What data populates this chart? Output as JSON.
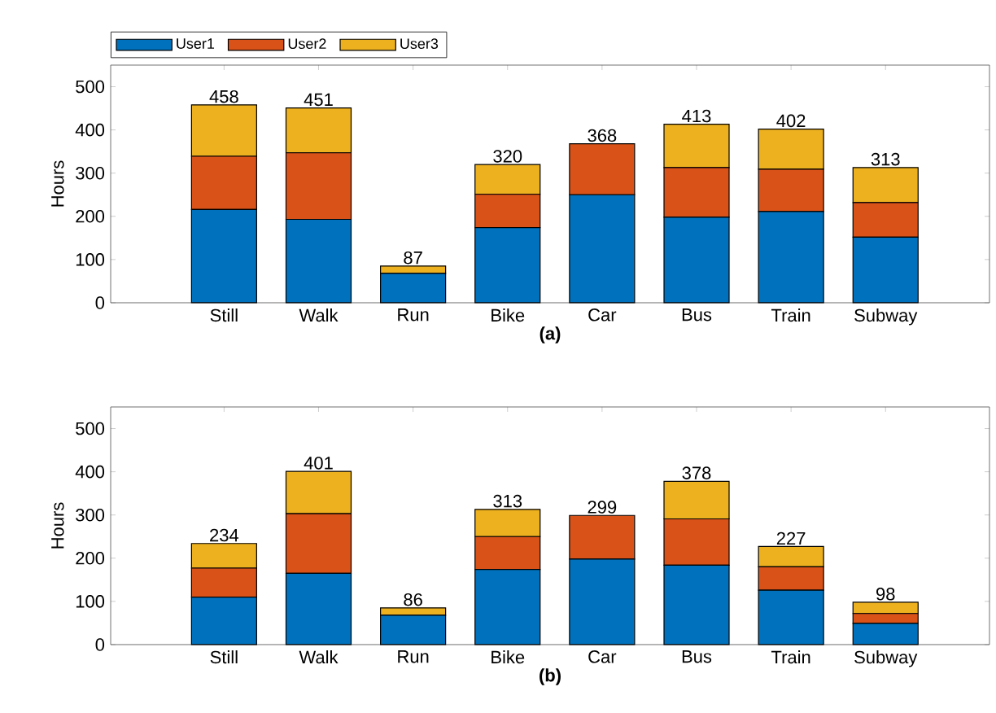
{
  "chart_data": [
    {
      "type": "bar",
      "stacked": true,
      "xlabel": "(a)",
      "ylabel": "Hours",
      "categories": [
        "Still",
        "Walk",
        "Run",
        "Bike",
        "Car",
        "Bus",
        "Train",
        "Subway"
      ],
      "ylim": [
        0,
        550
      ],
      "yticks": [
        0,
        100,
        200,
        300,
        400,
        500
      ],
      "legend": "top left",
      "totals": [
        "458",
        "451",
        "87",
        "320",
        "368",
        "413",
        "402",
        "313"
      ],
      "series": [
        {
          "name": "User1",
          "color": "#0072bd",
          "values": [
            216,
            193,
            68,
            174,
            250,
            198,
            211,
            152
          ]
        },
        {
          "name": "User2",
          "color": "#d95319",
          "values": [
            123,
            154,
            null,
            77,
            118,
            115,
            98,
            80
          ]
        },
        {
          "name": "User3",
          "color": "#edb120",
          "values": [
            119,
            104,
            17,
            69,
            0,
            100,
            93,
            81
          ]
        }
      ]
    },
    {
      "type": "bar",
      "stacked": true,
      "xlabel": "(b)",
      "ylabel": "Hours",
      "categories": [
        "Still",
        "Walk",
        "Run",
        "Bike",
        "Car",
        "Bus",
        "Train",
        "Subway"
      ],
      "ylim": [
        0,
        550
      ],
      "yticks": [
        0,
        100,
        200,
        300,
        400,
        500
      ],
      "totals": [
        "234",
        "401",
        "86",
        "313",
        "299",
        "378",
        "227",
        "98"
      ],
      "series": [
        {
          "color": "#0072bd",
          "values": [
            110,
            165,
            68,
            174,
            198,
            184,
            126,
            49
          ]
        },
        {
          "color": "#d95319",
          "values": [
            67,
            138,
            null,
            76,
            101,
            107,
            54,
            23
          ]
        },
        {
          "color": "#edb120",
          "values": [
            57,
            98,
            17,
            63,
            0,
            87,
            47,
            26
          ]
        }
      ]
    }
  ]
}
